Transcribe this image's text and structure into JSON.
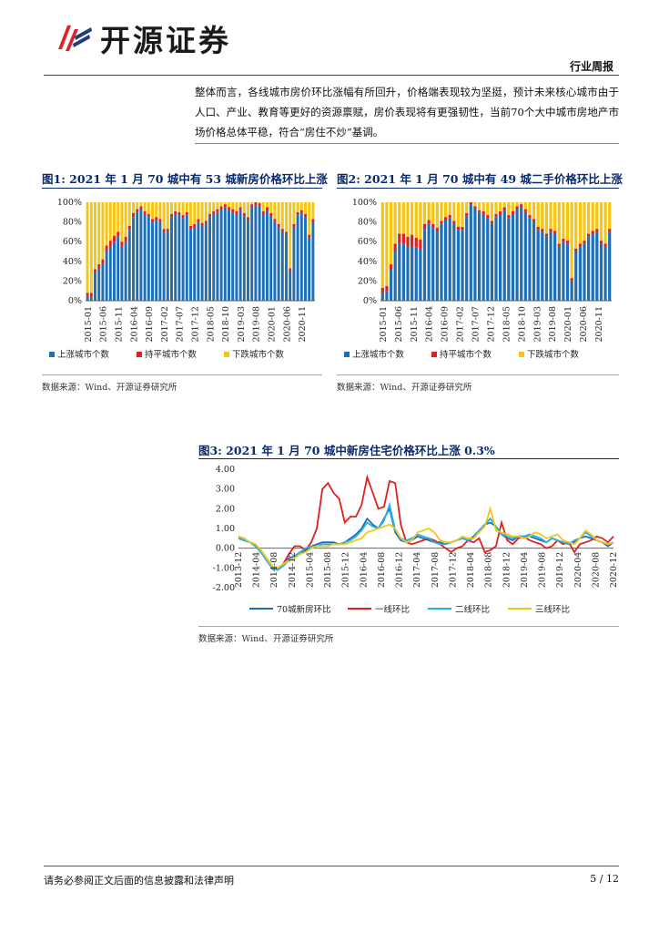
{
  "header": {
    "brand": "开源证券",
    "report_type": "行业周报",
    "brand_colors": [
      "#d7252a",
      "#1f3d7a"
    ]
  },
  "body_text": "整体而言，各线城市房价环比涨幅有所回升，价格端表现较为坚挺，预计未来核心城市由于人口、产业、教育等更好的资源禀赋，房价表现将有更强韧性，当前70个大中城市房地产市场价格总体平稳，符合“房住不炒”基调。",
  "figures": [
    {
      "label": "图1:",
      "title": "2021 年 1 月 70 城中有 53 城新房价格环比上涨",
      "source": "数据来源：Wind、开源证券研究所"
    },
    {
      "label": "图2:",
      "title": "2021 年 1 月 70 城中有 49 城二手价格环比上涨",
      "source": "数据来源：Wind、开源证券研究所"
    },
    {
      "label": "图3:",
      "title": "2021 年 1 月 70 城中新房住宅价格环比上涨 0.3%",
      "source": "数据来源：Wind、开源证券研究所"
    }
  ],
  "footer": {
    "disclaimer": "请务必参阅正文后面的信息披露和法律声明",
    "page": "5 / 12"
  },
  "chart_data": [
    {
      "type": "bar",
      "stacked": true,
      "percent": true,
      "ylim": [
        0,
        100
      ],
      "yticks": [
        "0%",
        "20%",
        "40%",
        "60%",
        "80%",
        "100%"
      ],
      "xticks": [
        "2015-01",
        "2015-06",
        "2015-11",
        "2016-04",
        "2016-09",
        "2017-02",
        "2017-07",
        "2017-12",
        "2018-05",
        "2018-10",
        "2019-03",
        "2019-08",
        "2020-01",
        "2020-06",
        "2020-11"
      ],
      "colors": {
        "up": "#1f6fb5",
        "flat": "#e02020",
        "down": "#f5c518"
      },
      "legend": [
        "上涨城市个数",
        "持平城市个数",
        "下跌城市个数"
      ],
      "up_pct": [
        5,
        3,
        28,
        32,
        37,
        50,
        55,
        60,
        65,
        55,
        60,
        72,
        85,
        90,
        93,
        88,
        85,
        80,
        82,
        80,
        70,
        70,
        85,
        88,
        87,
        84,
        87,
        73,
        75,
        80,
        76,
        78,
        85,
        88,
        90,
        93,
        95,
        92,
        90,
        88,
        92,
        86,
        82,
        95,
        97,
        96,
        88,
        92,
        86,
        80,
        75,
        70,
        67,
        30,
        75,
        87,
        89,
        85,
        64,
        80
      ],
      "flat_pct": [
        3,
        5,
        4,
        5,
        5,
        6,
        6,
        6,
        5,
        5,
        5,
        4,
        4,
        3,
        3,
        3,
        3,
        3,
        3,
        3,
        3,
        3,
        3,
        3,
        3,
        3,
        3,
        3,
        3,
        3,
        3,
        3,
        3,
        3,
        3,
        3,
        3,
        3,
        3,
        3,
        3,
        3,
        3,
        3,
        3,
        3,
        3,
        3,
        3,
        3,
        3,
        3,
        3,
        3,
        3,
        3,
        3,
        3,
        3,
        3
      ]
    },
    {
      "type": "bar",
      "stacked": true,
      "percent": true,
      "ylim": [
        0,
        100
      ],
      "yticks": [
        "0%",
        "20%",
        "40%",
        "60%",
        "80%",
        "100%"
      ],
      "xticks": [
        "2015-01",
        "2015-06",
        "2015-11",
        "2016-04",
        "2016-09",
        "2017-02",
        "2017-07",
        "2017-12",
        "2018-05",
        "2018-10",
        "2019-03",
        "2019-08",
        "2020-01",
        "2020-06",
        "2020-11"
      ],
      "colors": {
        "up": "#1f6fb5",
        "flat": "#e02020",
        "down": "#f5c518"
      },
      "legend": [
        "上涨城市个数",
        "持平城市个数",
        "下跌城市个数"
      ],
      "up_pct": [
        8,
        10,
        32,
        50,
        58,
        58,
        55,
        55,
        54,
        52,
        72,
        78,
        74,
        70,
        78,
        82,
        84,
        78,
        72,
        72,
        86,
        98,
        94,
        90,
        88,
        84,
        78,
        85,
        88,
        92,
        84,
        88,
        93,
        95,
        90,
        84,
        80,
        72,
        70,
        65,
        70,
        68,
        55,
        60,
        58,
        20,
        50,
        55,
        58,
        65,
        68,
        70,
        58,
        55,
        70
      ],
      "flat_pct": [
        5,
        5,
        5,
        8,
        10,
        10,
        10,
        12,
        10,
        10,
        6,
        4,
        4,
        4,
        3,
        3,
        3,
        3,
        3,
        3,
        3,
        2,
        2,
        2,
        3,
        3,
        3,
        3,
        3,
        3,
        3,
        3,
        3,
        3,
        3,
        3,
        3,
        3,
        3,
        3,
        3,
        3,
        3,
        3,
        3,
        3,
        3,
        3,
        3,
        3,
        3,
        3,
        3,
        3,
        3
      ]
    },
    {
      "type": "line",
      "ylim": [
        -2,
        4
      ],
      "yticks": [
        "4.00",
        "3.00",
        "2.00",
        "1.00",
        "0.00",
        "-1.00",
        "-2.00"
      ],
      "xticks": [
        "2013-12",
        "2014-04",
        "2014-08",
        "2014-12",
        "2015-04",
        "2015-08",
        "2015-12",
        "2016-04",
        "2016-08",
        "2016-12",
        "2017-04",
        "2017-08",
        "2017-12",
        "2018-04",
        "2018-08",
        "2018-12",
        "2019-04",
        "2019-08",
        "2019-12",
        "2020-04",
        "2020-08",
        "2020-12"
      ],
      "series": [
        {
          "name": "70城新房环比",
          "color": "#1f6fb5",
          "values": [
            0.6,
            0.5,
            0.3,
            0.2,
            -0.1,
            -0.5,
            -0.9,
            -1.1,
            -0.8,
            -0.5,
            -0.4,
            -0.3,
            -0.1,
            0.1,
            0.2,
            0.3,
            0.3,
            0.3,
            0.2,
            0.3,
            0.5,
            0.7,
            1.0,
            1.5,
            1.2,
            1.0,
            1.5,
            2.0,
            0.8,
            0.4,
            0.3,
            0.4,
            0.6,
            0.5,
            0.4,
            0.3,
            0.3,
            0.2,
            0.3,
            0.4,
            0.5,
            0.4,
            0.6,
            0.9,
            1.2,
            1.3,
            1.1,
            0.7,
            0.5,
            0.4,
            0.6,
            0.6,
            0.6,
            0.5,
            0.4,
            0.3,
            0.5,
            0.4,
            0.3,
            0.2,
            0.3,
            0.5,
            0.6,
            0.5,
            0.4,
            0.3,
            0.1,
            0.3
          ]
        },
        {
          "name": "一线环比",
          "color": "#e02020",
          "values": [
            0.5,
            0.4,
            0.3,
            0.2,
            -0.2,
            -0.6,
            -1.0,
            -1.1,
            -0.8,
            -0.3,
            0.1,
            0.1,
            -0.1,
            0.3,
            1.0,
            3.0,
            3.3,
            2.8,
            2.5,
            1.3,
            1.6,
            1.6,
            2.2,
            3.6,
            2.8,
            2.0,
            2.1,
            3.4,
            3.3,
            1.2,
            0.3,
            0.2,
            0.3,
            0.4,
            0.5,
            0.4,
            0.2,
            0.0,
            -0.2,
            0.0,
            0.1,
            0.4,
            0.3,
            0.5,
            -0.2,
            -0.1,
            0.1,
            1.3,
            0.4,
            0.2,
            0.5,
            0.6,
            0.4,
            0.3,
            0.2,
            0.0,
            0.1,
            0.4,
            0.2,
            0.3,
            -0.2,
            0.2,
            0.3,
            0.4,
            0.6,
            0.5,
            0.3,
            0.6
          ]
        },
        {
          "name": "二线环比",
          "color": "#23b2e6",
          "values": [
            0.5,
            0.4,
            0.3,
            0.1,
            -0.2,
            -0.6,
            -1.0,
            -1.1,
            -0.9,
            -0.6,
            -0.4,
            -0.2,
            0.0,
            0.1,
            0.1,
            0.2,
            0.2,
            0.2,
            0.2,
            0.3,
            0.4,
            0.6,
            0.9,
            1.3,
            1.1,
            1.0,
            1.4,
            2.2,
            0.9,
            0.5,
            0.4,
            0.5,
            0.7,
            0.6,
            0.5,
            0.3,
            0.2,
            0.2,
            0.3,
            0.4,
            0.5,
            0.4,
            0.5,
            0.9,
            1.2,
            1.5,
            1.1,
            0.7,
            0.6,
            0.5,
            0.6,
            0.6,
            0.7,
            0.6,
            0.5,
            0.3,
            0.5,
            0.4,
            0.3,
            0.2,
            0.4,
            0.5,
            0.8,
            0.6,
            0.4,
            0.3,
            0.2,
            0.3
          ]
        },
        {
          "name": "三线环比",
          "color": "#f5c518",
          "values": [
            0.6,
            0.5,
            0.3,
            0.2,
            -0.1,
            -0.5,
            -0.9,
            -1.0,
            -0.8,
            -0.6,
            -0.5,
            -0.3,
            -0.2,
            0.0,
            0.1,
            0.1,
            0.1,
            0.2,
            0.2,
            0.2,
            0.3,
            0.4,
            0.5,
            0.8,
            0.9,
            1.0,
            1.1,
            1.2,
            1.0,
            0.5,
            0.3,
            0.4,
            0.8,
            0.9,
            1.0,
            0.8,
            0.4,
            0.3,
            0.3,
            0.4,
            0.6,
            0.5,
            0.5,
            0.8,
            1.1,
            2.0,
            0.9,
            0.8,
            0.7,
            0.6,
            0.6,
            0.5,
            0.6,
            0.8,
            0.7,
            0.5,
            0.6,
            0.7,
            0.4,
            0.3,
            0.2,
            0.5,
            0.9,
            0.7,
            0.4,
            0.3,
            0.2,
            0.3
          ]
        }
      ]
    }
  ]
}
